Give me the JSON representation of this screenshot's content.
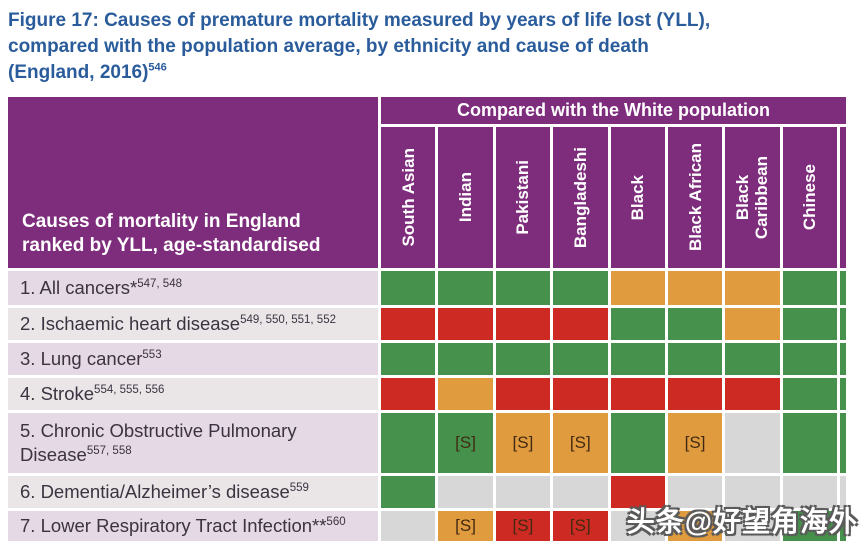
{
  "title": {
    "text": "Figure 17: Causes of premature mortality measured by years of life lost (YLL),\ncompared with the population average, by ethnicity and cause of death\n(England, 2016)",
    "superscript": "546"
  },
  "table": {
    "banner": "Compared with the White population",
    "corner_heading": "Causes of mortality in England\nranked by YLL, age-standardised"
  },
  "colors": {
    "title_blue": "#2a5c9c",
    "header_purple": "#7e2d7d",
    "row_odd": "#e5d9e5",
    "row_even": "#eae6e8",
    "grid_green": "#46914b",
    "grid_red": "#ce2a24",
    "grid_orange": "#df9b3d",
    "grid_gray": "#d8d7d7"
  },
  "watermark": "头条@好望角海外",
  "chart_data": {
    "type": "heatmap",
    "title": "Causes of premature mortality measured by years of life lost (YLL), compared with the population average, by ethnicity and cause of death (England, 2016)",
    "column_group_header": "Compared with the White population",
    "row_axis_header": "Causes of mortality in England ranked by YLL, age-standardised",
    "columns": [
      "South Asian",
      "Indian",
      "Pakistani",
      "Bangladeshi",
      "Black",
      "Black African",
      "Black\nCaribbean",
      "Chinese"
    ],
    "cell_significance_mark": "[S]",
    "rows": [
      {
        "label": "1. All cancers*",
        "superscript": "547, 548",
        "cells": [
          "green",
          "green",
          "green",
          "green",
          "orange",
          "orange",
          "orange",
          "green"
        ],
        "marks": [
          "",
          "",
          "",
          "",
          "",
          "",
          "",
          ""
        ]
      },
      {
        "label": "2. Ischaemic heart disease",
        "superscript": "549, 550, 551, 552",
        "cells": [
          "red",
          "red",
          "red",
          "red",
          "green",
          "green",
          "orange",
          "green"
        ],
        "marks": [
          "",
          "",
          "",
          "",
          "",
          "",
          "",
          ""
        ]
      },
      {
        "label": "3. Lung cancer",
        "superscript": "553",
        "cells": [
          "green",
          "green",
          "green",
          "green",
          "green",
          "green",
          "green",
          "green"
        ],
        "marks": [
          "",
          "",
          "",
          "",
          "",
          "",
          "",
          ""
        ]
      },
      {
        "label": "4. Stroke",
        "superscript": "554, 555, 556",
        "cells": [
          "red",
          "orange",
          "red",
          "red",
          "red",
          "red",
          "red",
          "green"
        ],
        "marks": [
          "",
          "",
          "",
          "",
          "",
          "",
          "",
          ""
        ]
      },
      {
        "label": "5. Chronic Obstructive Pulmonary Disease",
        "superscript": "557, 558",
        "cells": [
          "green",
          "green",
          "orange",
          "orange",
          "green",
          "orange",
          "gray",
          "green"
        ],
        "marks": [
          "",
          "[S]",
          "[S]",
          "[S]",
          "",
          "[S]",
          "",
          ""
        ]
      },
      {
        "label": "6. Dementia/Alzheimer’s disease",
        "superscript": "559",
        "cells": [
          "green",
          "gray",
          "gray",
          "gray",
          "red",
          "gray",
          "gray",
          "gray"
        ],
        "marks": [
          "",
          "",
          "",
          "",
          "",
          "",
          "",
          ""
        ]
      },
      {
        "label": "7. Lower Respiratory Tract Infection**",
        "superscript": "560",
        "cells": [
          "gray",
          "orange",
          "red",
          "red",
          "gray",
          "orange",
          "gray",
          "green"
        ],
        "marks": [
          "",
          "[S]",
          "[S]",
          "[S]",
          "",
          "",
          "",
          ""
        ]
      }
    ],
    "edge_strip": [
      "green",
      "green",
      "green",
      "green",
      "green",
      "gray",
      "green"
    ]
  }
}
